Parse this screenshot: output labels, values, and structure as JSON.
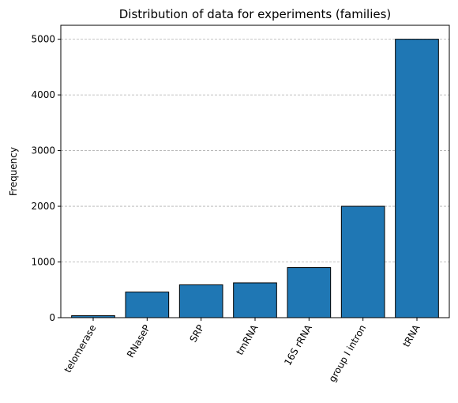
{
  "chart_data": {
    "type": "bar",
    "title": "Distribution of data for experiments (families)",
    "xlabel": "",
    "ylabel": "Frequency",
    "categories": [
      "telomerase",
      "RNaseP",
      "SRP",
      "tmRNA",
      "16S rRNA",
      "group I intron",
      "tRNA"
    ],
    "values": [
      35,
      460,
      590,
      625,
      900,
      2000,
      5000
    ],
    "ylim": [
      0,
      5250
    ],
    "yticks": [
      0,
      1000,
      2000,
      3000,
      4000,
      5000
    ],
    "grid": "y-dashed",
    "bar_color": "#1f77b4",
    "edge_color": "#000000",
    "grid_color": "#b0b0b0"
  }
}
